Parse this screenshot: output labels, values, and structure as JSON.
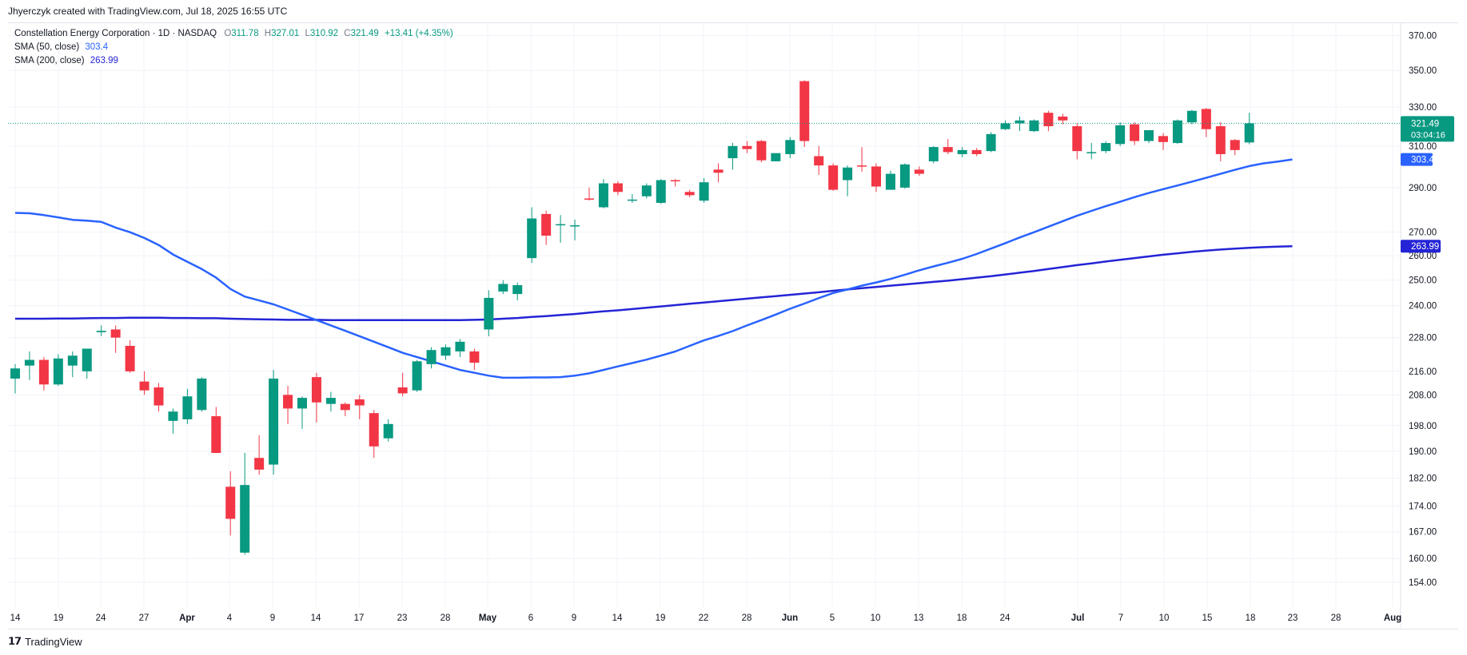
{
  "header": {
    "caption": "Jhyerczyk created with TradingView.com, Jul 18, 2025 16:55 UTC"
  },
  "legend": {
    "symbol": "Constellation Energy Corporation · 1D · NASDAQ",
    "o_label": "O",
    "o": "311.78",
    "h_label": "H",
    "h": "327.01",
    "l_label": "L",
    "l": "310.92",
    "c_label": "C",
    "c": "321.49",
    "change": "+13.41 (+4.35%)",
    "sma50_label": "SMA (50, close)",
    "sma50": "303.4",
    "sma200_label": "SMA (200, close)",
    "sma200": "263.99"
  },
  "brand": {
    "name": "TradingView"
  },
  "colors": {
    "up": "#089981",
    "down": "#f23645",
    "sma50": "#2962ff",
    "sma200": "#2424d6",
    "grid": "#f0f3fa",
    "axis_text": "#131722"
  },
  "chart_data": {
    "type": "candlestick",
    "title": "Constellation Energy Corporation · 1D · NASDAQ",
    "price_scale": "log",
    "ylim": [
      148,
      378
    ],
    "y_ticks": [
      370,
      350,
      330,
      310,
      290,
      270,
      260,
      250,
      240,
      228,
      216,
      208,
      198,
      190,
      182,
      174,
      167,
      160,
      154
    ],
    "x_ticks": [
      "14",
      "19",
      "24",
      "27",
      "Apr",
      "4",
      "9",
      "14",
      "17",
      "23",
      "28",
      "May",
      "6",
      "9",
      "14",
      "19",
      "22",
      "28",
      "Jun",
      "5",
      "10",
      "13",
      "18",
      "24",
      "Jul",
      "7",
      "10",
      "15",
      "18",
      "23",
      "28",
      "Aug"
    ],
    "candles": [
      {
        "o": 213.5,
        "h": 218.5,
        "l": 208.5,
        "c": 217.0
      },
      {
        "o": 218.0,
        "h": 223.0,
        "l": 213.0,
        "c": 220.0
      },
      {
        "o": 220.0,
        "h": 221.0,
        "l": 209.5,
        "c": 211.5
      },
      {
        "o": 211.5,
        "h": 222.0,
        "l": 211.0,
        "c": 220.5
      },
      {
        "o": 218.0,
        "h": 223.0,
        "l": 214.0,
        "c": 221.5
      },
      {
        "o": 216.0,
        "h": 224.0,
        "l": 213.5,
        "c": 224.0
      },
      {
        "o": 230.0,
        "h": 232.5,
        "l": 228.5,
        "c": 230.5
      },
      {
        "o": 231.0,
        "h": 232.5,
        "l": 222.5,
        "c": 228.0
      },
      {
        "o": 225.0,
        "h": 227.0,
        "l": 215.5,
        "c": 216.0
      },
      {
        "o": 212.5,
        "h": 216.0,
        "l": 208.0,
        "c": 209.5
      },
      {
        "o": 210.5,
        "h": 212.0,
        "l": 202.5,
        "c": 204.5
      },
      {
        "o": 199.5,
        "h": 203.5,
        "l": 195.5,
        "c": 202.5
      },
      {
        "o": 200.0,
        "h": 210.0,
        "l": 198.5,
        "c": 207.5
      },
      {
        "o": 203.0,
        "h": 214.0,
        "l": 202.5,
        "c": 213.5
      },
      {
        "o": 201.0,
        "h": 204.0,
        "l": 189.5,
        "c": 189.5
      },
      {
        "o": 179.5,
        "h": 184.0,
        "l": 166.0,
        "c": 170.5
      },
      {
        "o": 161.5,
        "h": 189.5,
        "l": 161.0,
        "c": 180.0
      },
      {
        "o": 188.0,
        "h": 195.0,
        "l": 183.0,
        "c": 184.5
      },
      {
        "o": 186.0,
        "h": 216.5,
        "l": 183.0,
        "c": 213.5
      },
      {
        "o": 208.0,
        "h": 211.0,
        "l": 198.5,
        "c": 203.5
      },
      {
        "o": 203.5,
        "h": 207.5,
        "l": 197.0,
        "c": 207.0
      },
      {
        "o": 214.0,
        "h": 215.5,
        "l": 199.0,
        "c": 205.5
      },
      {
        "o": 205.0,
        "h": 209.0,
        "l": 202.5,
        "c": 207.0
      },
      {
        "o": 205.0,
        "h": 205.5,
        "l": 201.0,
        "c": 203.0
      },
      {
        "o": 206.5,
        "h": 208.0,
        "l": 200.0,
        "c": 204.5
      },
      {
        "o": 202.0,
        "h": 203.0,
        "l": 188.0,
        "c": 191.5
      },
      {
        "o": 194.0,
        "h": 200.0,
        "l": 193.0,
        "c": 198.5
      },
      {
        "o": 210.5,
        "h": 215.5,
        "l": 207.5,
        "c": 208.5
      },
      {
        "o": 209.5,
        "h": 220.0,
        "l": 209.0,
        "c": 219.5
      },
      {
        "o": 218.5,
        "h": 224.5,
        "l": 217.0,
        "c": 223.5
      },
      {
        "o": 221.5,
        "h": 225.5,
        "l": 220.0,
        "c": 224.5
      },
      {
        "o": 223.0,
        "h": 227.5,
        "l": 221.0,
        "c": 226.5
      },
      {
        "o": 223.0,
        "h": 224.0,
        "l": 216.5,
        "c": 219.0
      },
      {
        "o": 231.0,
        "h": 246.0,
        "l": 228.5,
        "c": 243.0
      },
      {
        "o": 245.5,
        "h": 250.0,
        "l": 244.5,
        "c": 248.5
      },
      {
        "o": 244.5,
        "h": 249.0,
        "l": 242.0,
        "c": 248.0
      },
      {
        "o": 259.0,
        "h": 281.0,
        "l": 257.0,
        "c": 276.0
      },
      {
        "o": 278.0,
        "h": 279.5,
        "l": 264.5,
        "c": 268.5
      },
      {
        "o": 273.0,
        "h": 277.5,
        "l": 265.5,
        "c": 273.5
      },
      {
        "o": 273.0,
        "h": 275.5,
        "l": 266.5,
        "c": 273.0
      },
      {
        "o": 285.0,
        "h": 290.0,
        "l": 284.0,
        "c": 284.5
      },
      {
        "o": 281.0,
        "h": 294.0,
        "l": 280.5,
        "c": 292.0
      },
      {
        "o": 292.0,
        "h": 293.0,
        "l": 286.5,
        "c": 288.0
      },
      {
        "o": 284.0,
        "h": 287.0,
        "l": 283.0,
        "c": 284.5
      },
      {
        "o": 286.0,
        "h": 292.0,
        "l": 285.0,
        "c": 291.0
      },
      {
        "o": 283.0,
        "h": 294.0,
        "l": 282.5,
        "c": 293.5
      },
      {
        "o": 293.5,
        "h": 294.0,
        "l": 290.5,
        "c": 293.0
      },
      {
        "o": 288.0,
        "h": 289.0,
        "l": 285.5,
        "c": 286.5
      },
      {
        "o": 284.0,
        "h": 294.5,
        "l": 283.0,
        "c": 292.5
      },
      {
        "o": 298.5,
        "h": 301.5,
        "l": 292.5,
        "c": 297.0
      },
      {
        "o": 304.0,
        "h": 311.5,
        "l": 298.5,
        "c": 310.0
      },
      {
        "o": 310.0,
        "h": 312.5,
        "l": 306.5,
        "c": 308.5
      },
      {
        "o": 312.5,
        "h": 313.0,
        "l": 302.0,
        "c": 303.0
      },
      {
        "o": 302.5,
        "h": 306.0,
        "l": 302.5,
        "c": 306.5
      },
      {
        "o": 306.0,
        "h": 314.5,
        "l": 304.0,
        "c": 313.0
      },
      {
        "o": 344.0,
        "h": 344.5,
        "l": 309.5,
        "c": 312.5
      },
      {
        "o": 305.0,
        "h": 310.0,
        "l": 296.0,
        "c": 300.5
      },
      {
        "o": 300.5,
        "h": 301.5,
        "l": 288.5,
        "c": 289.0
      },
      {
        "o": 293.5,
        "h": 300.5,
        "l": 286.0,
        "c": 299.5
      },
      {
        "o": 300.5,
        "h": 309.5,
        "l": 297.5,
        "c": 300.0
      },
      {
        "o": 300.0,
        "h": 301.5,
        "l": 288.0,
        "c": 290.5
      },
      {
        "o": 289.0,
        "h": 298.0,
        "l": 289.0,
        "c": 296.5
      },
      {
        "o": 290.0,
        "h": 301.5,
        "l": 289.5,
        "c": 301.0
      },
      {
        "o": 298.5,
        "h": 300.0,
        "l": 295.5,
        "c": 296.5
      },
      {
        "o": 302.5,
        "h": 310.0,
        "l": 301.5,
        "c": 309.5
      },
      {
        "o": 309.5,
        "h": 313.5,
        "l": 306.0,
        "c": 307.0
      },
      {
        "o": 306.0,
        "h": 309.5,
        "l": 304.5,
        "c": 308.0
      },
      {
        "o": 308.0,
        "h": 309.0,
        "l": 305.0,
        "c": 306.0
      },
      {
        "o": 307.5,
        "h": 317.0,
        "l": 307.0,
        "c": 316.0
      },
      {
        "o": 318.5,
        "h": 323.0,
        "l": 318.0,
        "c": 321.5
      },
      {
        "o": 321.5,
        "h": 325.0,
        "l": 317.5,
        "c": 323.0
      },
      {
        "o": 317.5,
        "h": 323.5,
        "l": 317.0,
        "c": 323.0
      },
      {
        "o": 327.0,
        "h": 328.0,
        "l": 317.5,
        "c": 320.0
      },
      {
        "o": 325.0,
        "h": 326.5,
        "l": 321.0,
        "c": 323.0
      },
      {
        "o": 320.0,
        "h": 321.5,
        "l": 303.5,
        "c": 307.5
      },
      {
        "o": 307.0,
        "h": 311.5,
        "l": 303.5,
        "c": 307.0
      },
      {
        "o": 307.5,
        "h": 312.5,
        "l": 306.5,
        "c": 311.5
      },
      {
        "o": 311.0,
        "h": 322.0,
        "l": 310.0,
        "c": 320.5
      },
      {
        "o": 321.0,
        "h": 322.0,
        "l": 310.5,
        "c": 312.5
      },
      {
        "o": 312.5,
        "h": 318.0,
        "l": 311.5,
        "c": 318.0
      },
      {
        "o": 315.0,
        "h": 316.5,
        "l": 308.0,
        "c": 312.0
      },
      {
        "o": 311.5,
        "h": 323.5,
        "l": 311.0,
        "c": 323.0
      },
      {
        "o": 322.0,
        "h": 328.5,
        "l": 321.0,
        "c": 328.0
      },
      {
        "o": 329.0,
        "h": 329.5,
        "l": 314.5,
        "c": 318.5
      },
      {
        "o": 320.0,
        "h": 322.0,
        "l": 302.5,
        "c": 306.0
      },
      {
        "o": 313.0,
        "h": 313.5,
        "l": 305.5,
        "c": 308.0
      },
      {
        "o": 311.78,
        "h": 327.01,
        "l": 310.92,
        "c": 321.49
      }
    ],
    "sma50": [
      278.5,
      278.3,
      277.5,
      276.5,
      275.4,
      275.0,
      274.5,
      272.0,
      270.0,
      267.5,
      264.5,
      260.5,
      257.5,
      254.5,
      251.0,
      246.5,
      243.5,
      242.0,
      240.5,
      238.5,
      236.5,
      234.5,
      232.5,
      230.5,
      228.5,
      226.5,
      224.5,
      222.5,
      221.0,
      219.5,
      218.0,
      216.5,
      215.5,
      214.5,
      213.8,
      213.8,
      213.9,
      213.9,
      214.0,
      214.5,
      215.3,
      216.5,
      217.7,
      218.9,
      220.1,
      221.5,
      223.0,
      225.0,
      227.0,
      228.6,
      230.4,
      232.5,
      234.5,
      236.6,
      238.8,
      240.8,
      242.9,
      244.9,
      246.3,
      247.8,
      249.1,
      250.5,
      252.2,
      254.0,
      255.6,
      257.1,
      258.7,
      260.7,
      263.0,
      265.3,
      267.7,
      270.0,
      272.4,
      274.8,
      277.2,
      279.4,
      281.5,
      283.5,
      285.6,
      287.5,
      289.3,
      291.0,
      292.8,
      294.6,
      296.5,
      298.4,
      300.2,
      301.5,
      302.4,
      303.4
    ],
    "sma200": [
      235.0,
      235.0,
      235.0,
      235.1,
      235.1,
      235.2,
      235.3,
      235.3,
      235.4,
      235.4,
      235.4,
      235.3,
      235.3,
      235.2,
      235.2,
      235.0,
      234.9,
      234.8,
      234.7,
      234.6,
      234.6,
      234.6,
      234.5,
      234.5,
      234.5,
      234.5,
      234.5,
      234.5,
      234.5,
      234.5,
      234.5,
      234.5,
      234.6,
      234.7,
      235.0,
      235.3,
      235.7,
      236.0,
      236.4,
      236.8,
      237.3,
      237.8,
      238.2,
      238.7,
      239.2,
      239.7,
      240.2,
      240.7,
      241.2,
      241.7,
      242.2,
      242.7,
      243.2,
      243.7,
      244.2,
      244.7,
      245.2,
      245.8,
      246.3,
      246.8,
      247.3,
      247.8,
      248.3,
      248.8,
      249.3,
      249.8,
      250.4,
      251.0,
      251.6,
      252.3,
      253.0,
      253.7,
      254.5,
      255.3,
      256.1,
      256.8,
      257.6,
      258.3,
      259.0,
      259.7,
      260.4,
      261.0,
      261.6,
      262.1,
      262.6,
      263.0,
      263.3,
      263.6,
      263.8,
      263.99
    ],
    "last_price": 321.49,
    "last_price_countdown": "03:04:16",
    "sma50_value": 303.4,
    "sma200_value": 263.99
  }
}
